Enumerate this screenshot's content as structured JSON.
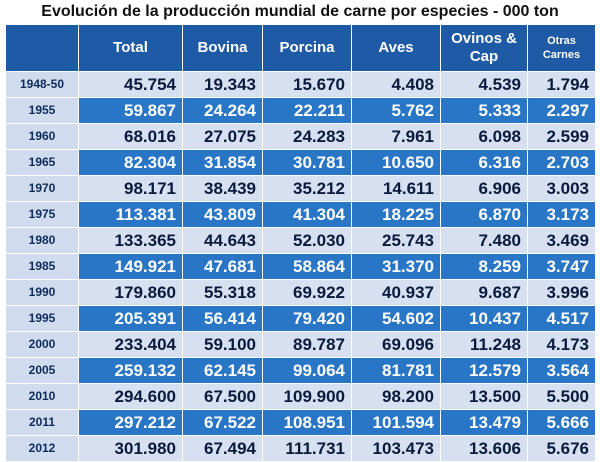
{
  "title": "Evolución de la producción mundial de carne por especies - 000 ton",
  "chart_data": {
    "type": "table",
    "columns": [
      "Total",
      "Bovina",
      "Porcina",
      "Aves",
      "Ovinos & Cap",
      "Otras Carnes"
    ],
    "header_lines": [
      [
        "Total"
      ],
      [
        "Bovina"
      ],
      [
        "Porcina"
      ],
      [
        "Aves"
      ],
      [
        "Ovinos &",
        "Cap"
      ],
      [
        "Otras",
        "Carnes"
      ]
    ],
    "rows": [
      {
        "year": "1948-50",
        "values": [
          "45.754",
          "19.343",
          "15.670",
          "4.408",
          "4.539",
          "1.794"
        ]
      },
      {
        "year": "1955",
        "values": [
          "59.867",
          "24.264",
          "22.211",
          "5.762",
          "5.333",
          "2.297"
        ]
      },
      {
        "year": "1960",
        "values": [
          "68.016",
          "27.075",
          "24.283",
          "7.961",
          "6.098",
          "2.599"
        ]
      },
      {
        "year": "1965",
        "values": [
          "82.304",
          "31.854",
          "30.781",
          "10.650",
          "6.316",
          "2.703"
        ]
      },
      {
        "year": "1970",
        "values": [
          "98.171",
          "38.439",
          "35.212",
          "14.611",
          "6.906",
          "3.003"
        ]
      },
      {
        "year": "1975",
        "values": [
          "113.381",
          "43.809",
          "41.304",
          "18.225",
          "6.870",
          "3.173"
        ]
      },
      {
        "year": "1980",
        "values": [
          "133.365",
          "44.643",
          "52.030",
          "25.743",
          "7.480",
          "3.469"
        ]
      },
      {
        "year": "1985",
        "values": [
          "149.921",
          "47.681",
          "58.864",
          "31.370",
          "8.259",
          "3.747"
        ]
      },
      {
        "year": "1990",
        "values": [
          "179.860",
          "55.318",
          "69.922",
          "40.937",
          "9.687",
          "3.996"
        ]
      },
      {
        "year": "1995",
        "values": [
          "205.391",
          "56.414",
          "79.420",
          "54.602",
          "10.437",
          "4.517"
        ]
      },
      {
        "year": "2000",
        "values": [
          "233.404",
          "59.100",
          "89.787",
          "69.096",
          "11.248",
          "4.173"
        ]
      },
      {
        "year": "2005",
        "values": [
          "259.132",
          "62.145",
          "99.064",
          "81.781",
          "12.579",
          "3.564"
        ]
      },
      {
        "year": "2010",
        "values": [
          "294.600",
          "67.500",
          "109.900",
          "98.200",
          "13.500",
          "5.500"
        ]
      },
      {
        "year": "2011",
        "values": [
          "297.212",
          "67.522",
          "108.951",
          "101.594",
          "13.479",
          "5.666"
        ]
      },
      {
        "year": "2012",
        "values": [
          "301.980",
          "67.494",
          "111.731",
          "103.473",
          "13.606",
          "5.676"
        ]
      }
    ],
    "colors": {
      "header": "#1f5aa6",
      "row_dark": "#2a76c6",
      "row_light": "#d6e0f0",
      "year_cell": "#d0dbed"
    }
  }
}
